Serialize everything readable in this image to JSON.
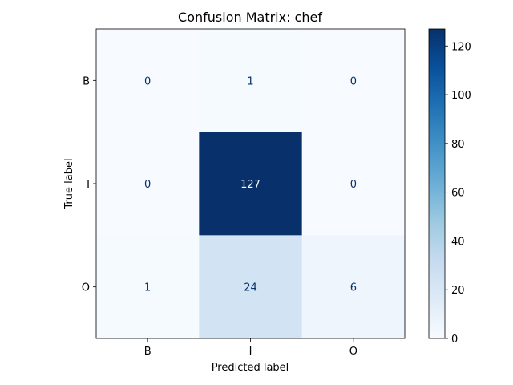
{
  "chart_data": {
    "type": "heatmap",
    "title": "Confusion Matrix: chef",
    "xlabel": "Predicted label",
    "ylabel": "True label",
    "x_categories": [
      "B",
      "I",
      "O"
    ],
    "y_categories": [
      "B",
      "I",
      "O"
    ],
    "values": [
      [
        0,
        1,
        0
      ],
      [
        0,
        127,
        0
      ],
      [
        1,
        24,
        6
      ]
    ],
    "vmin": 0,
    "vmax": 127,
    "colormap": "Blues",
    "colorbar_ticks": [
      0,
      20,
      40,
      60,
      80,
      100,
      120
    ],
    "grid": false
  }
}
